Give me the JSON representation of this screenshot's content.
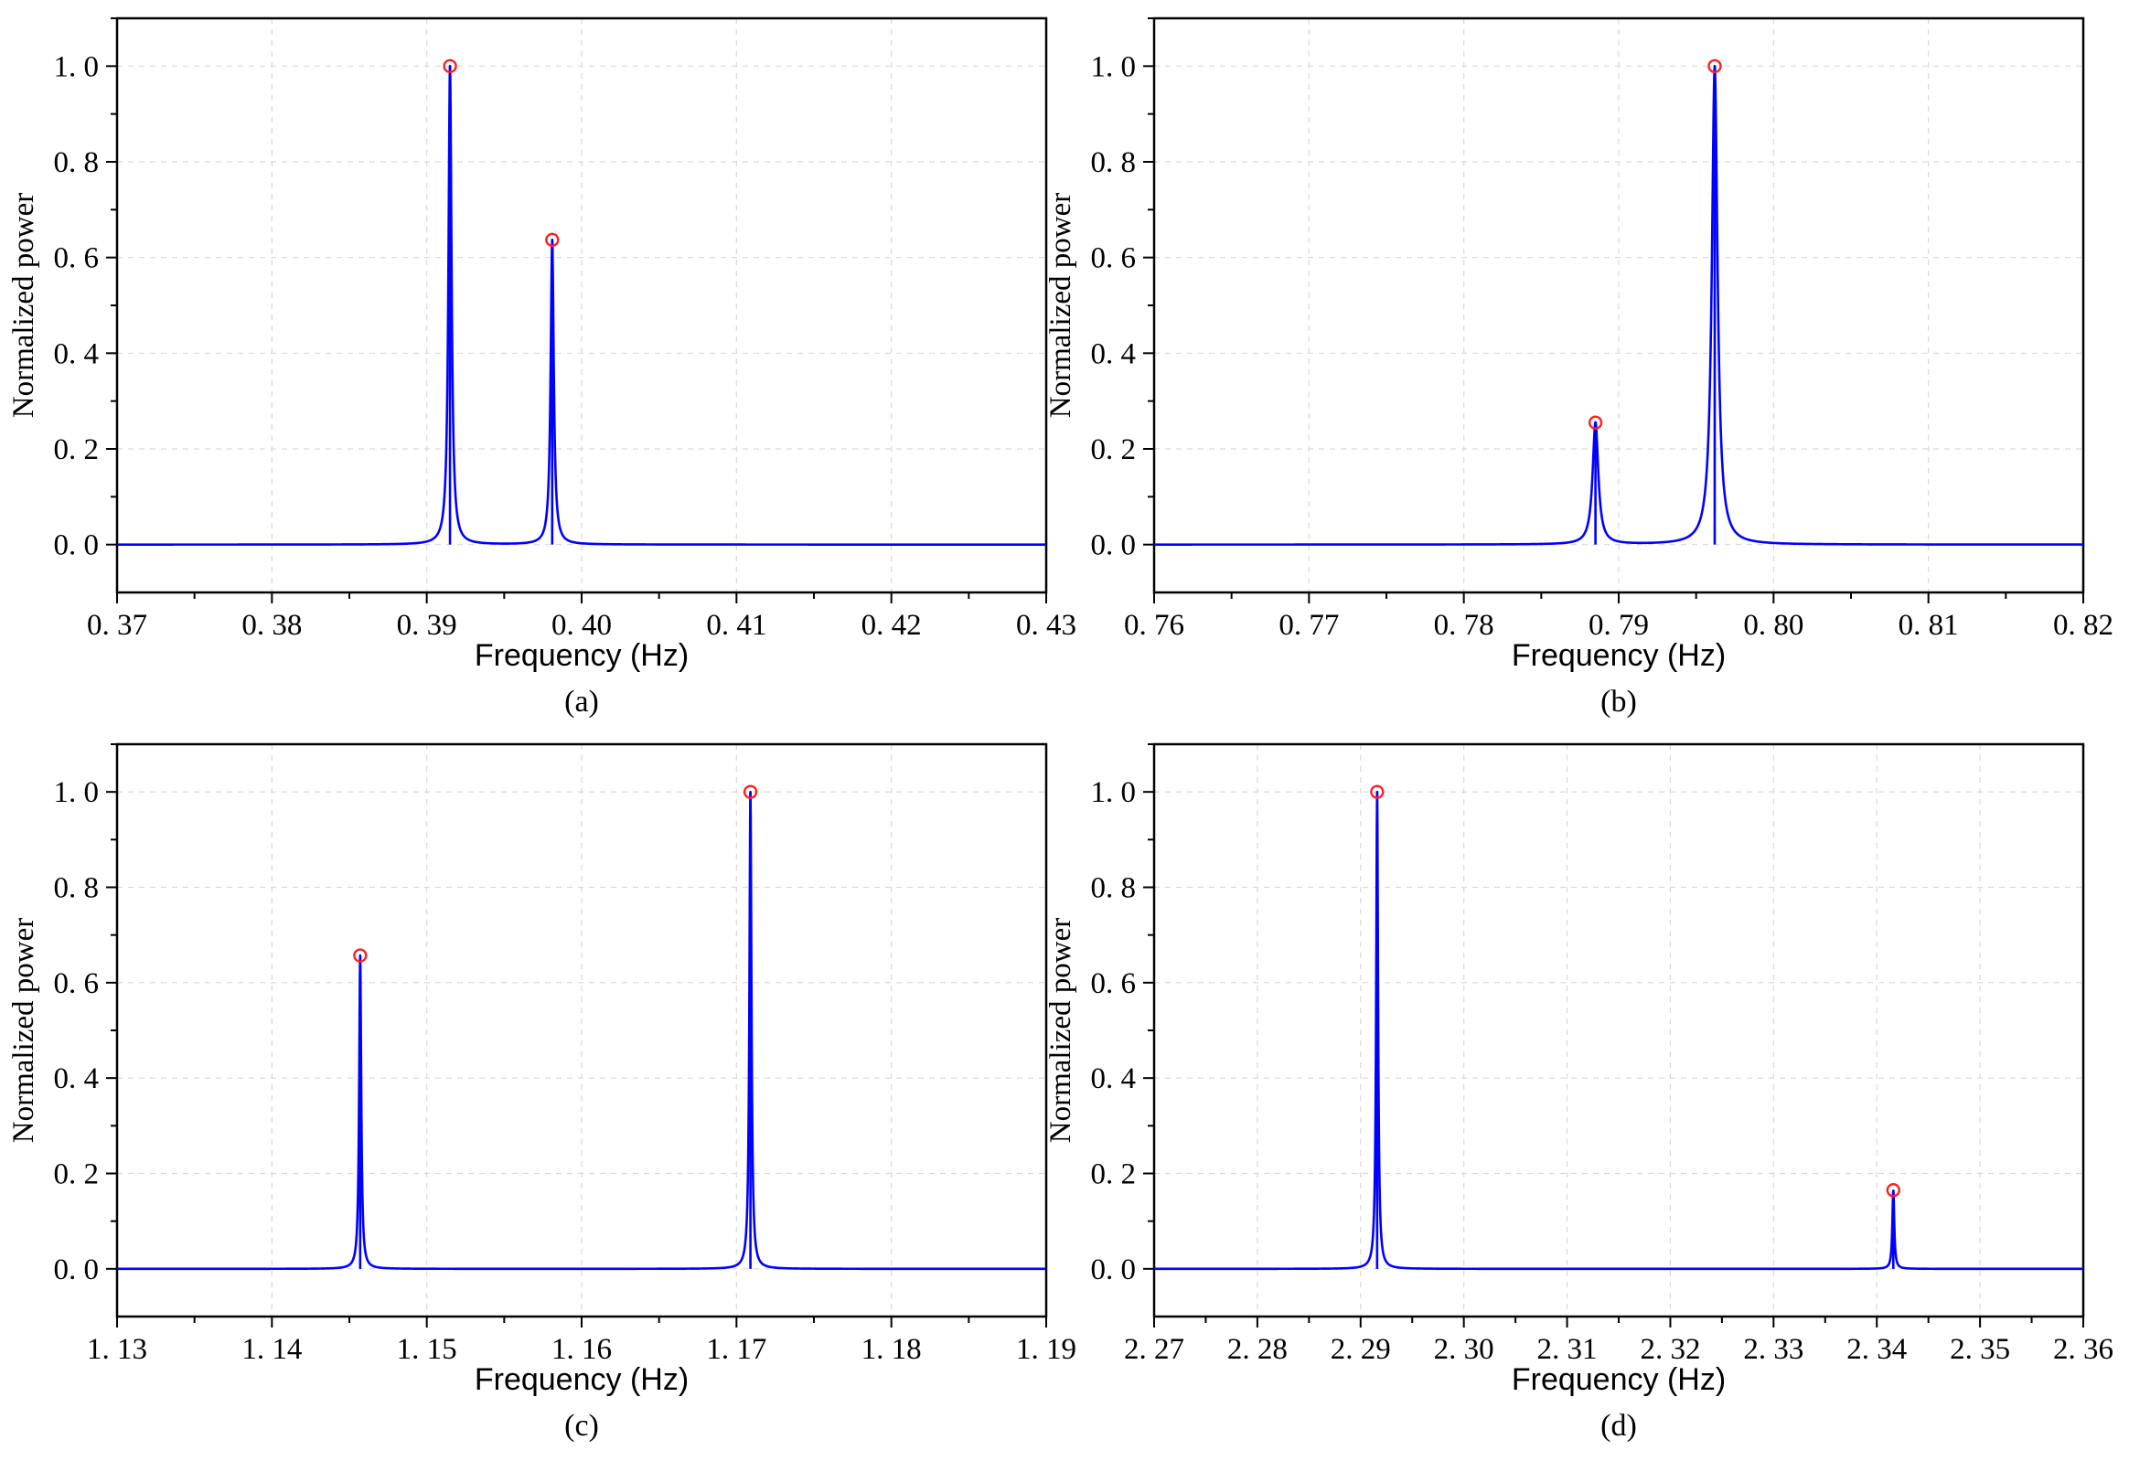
{
  "chart_data": [
    {
      "type": "line",
      "caption": "(a)",
      "xlabel": "Frequency (Hz)",
      "ylabel": "Normalized power",
      "xlim": [
        0.37,
        0.43
      ],
      "ylim": [
        -0.1,
        1.1
      ],
      "xticks": [
        0.37,
        0.38,
        0.39,
        0.4,
        0.41,
        0.42,
        0.43
      ],
      "xtick_labels": [
        "0. 37",
        "0. 38",
        "0. 39",
        "0. 40",
        "0. 41",
        "0. 42",
        "0. 43"
      ],
      "yticks": [
        0.0,
        0.2,
        0.4,
        0.6,
        0.8,
        1.0
      ],
      "ytick_labels": [
        "0. 0",
        "0. 2",
        "0. 4",
        "0. 6",
        "0. 8",
        "1. 0"
      ],
      "grid": true,
      "series_color": "#0000ff",
      "marker_color": "#ff2020",
      "peaks": [
        {
          "x": 0.3915,
          "y": 1.0,
          "width": 0.00012
        },
        {
          "x": 0.3981,
          "y": 0.637,
          "width": 0.00012
        }
      ]
    },
    {
      "type": "line",
      "caption": "(b)",
      "xlabel": "Frequency (Hz)",
      "ylabel": "Normalized power",
      "xlim": [
        0.76,
        0.82
      ],
      "ylim": [
        -0.1,
        1.1
      ],
      "xticks": [
        0.76,
        0.77,
        0.78,
        0.79,
        0.8,
        0.81,
        0.82
      ],
      "xtick_labels": [
        "0. 76",
        "0. 77",
        "0. 78",
        "0. 79",
        "0. 80",
        "0. 81",
        "0. 82"
      ],
      "yticks": [
        0.0,
        0.2,
        0.4,
        0.6,
        0.8,
        1.0
      ],
      "ytick_labels": [
        "0. 0",
        "0. 2",
        "0. 4",
        "0. 6",
        "0. 8",
        "1. 0"
      ],
      "grid": true,
      "series_color": "#0000ff",
      "marker_color": "#ff2020",
      "peaks": [
        {
          "x": 0.7885,
          "y": 0.255,
          "width": 0.00022
        },
        {
          "x": 0.7962,
          "y": 1.0,
          "width": 0.00022
        }
      ]
    },
    {
      "type": "line",
      "caption": "(c)",
      "xlabel": "Frequency (Hz)",
      "ylabel": "Normalized power",
      "xlim": [
        1.13,
        1.19
      ],
      "ylim": [
        -0.1,
        1.1
      ],
      "xticks": [
        1.13,
        1.14,
        1.15,
        1.16,
        1.17,
        1.18,
        1.19
      ],
      "xtick_labels": [
        "1. 13",
        "1. 14",
        "1. 15",
        "1. 16",
        "1. 17",
        "1. 18",
        "1. 19"
      ],
      "yticks": [
        0.0,
        0.2,
        0.4,
        0.6,
        0.8,
        1.0
      ],
      "ytick_labels": [
        "0. 0",
        "0. 2",
        "0. 4",
        "0. 6",
        "0. 8",
        "1. 0"
      ],
      "grid": true,
      "series_color": "#0000ff",
      "marker_color": "#ff2020",
      "peaks": [
        {
          "x": 1.1457,
          "y": 0.657,
          "width": 8e-05
        },
        {
          "x": 1.1709,
          "y": 1.0,
          "width": 8e-05
        }
      ]
    },
    {
      "type": "line",
      "caption": "(d)",
      "xlabel": "Frequency (Hz)",
      "ylabel": "Normalized power",
      "xlim": [
        2.27,
        2.36
      ],
      "ylim": [
        -0.1,
        1.1
      ],
      "xticks": [
        2.27,
        2.28,
        2.29,
        2.3,
        2.31,
        2.32,
        2.33,
        2.34,
        2.35,
        2.36
      ],
      "xtick_labels": [
        "2. 27",
        "2. 28",
        "2. 29",
        "2. 30",
        "2. 31",
        "2. 32",
        "2. 33",
        "2. 34",
        "2. 35",
        "2. 36"
      ],
      "yticks": [
        0.0,
        0.2,
        0.4,
        0.6,
        0.8,
        1.0
      ],
      "ytick_labels": [
        "0. 0",
        "0. 2",
        "0. 4",
        "0. 6",
        "0. 8",
        "1. 0"
      ],
      "grid": true,
      "series_color": "#0000ff",
      "marker_color": "#ff2020",
      "peaks": [
        {
          "x": 2.2916,
          "y": 1.0,
          "width": 0.00011
        },
        {
          "x": 2.3416,
          "y": 0.165,
          "width": 0.00011
        }
      ]
    }
  ]
}
